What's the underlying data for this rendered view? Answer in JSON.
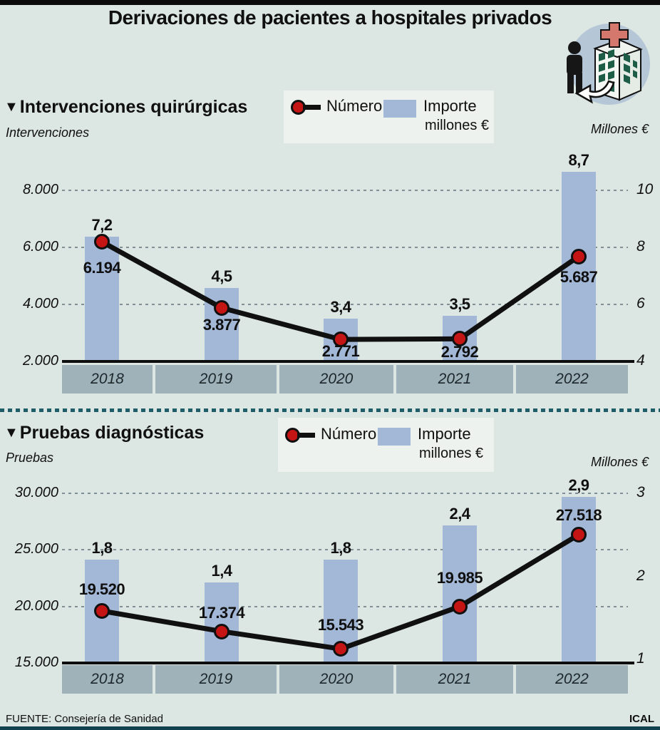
{
  "page": {
    "title": "Derivaciones de pacientes a hospitales privados",
    "source": "FUENTE: Consejería de Sanidad",
    "credit": "ICAL",
    "icon": "hospital-referral-icon"
  },
  "legend": {
    "line_label": "Número",
    "bar_label": "Importe",
    "bar_sublabel": "millones €"
  },
  "colors": {
    "background": "#dce6e2",
    "bar": "#a3b8d6",
    "line": "#101010",
    "dot": "#c41414",
    "band": "#9fb2b9",
    "legend_bg": "#edf2ef",
    "divider": "#1f5d68",
    "top_bar": "#0b0b0b",
    "bottom_bar": "#10414c",
    "icon_circle": "#b5c7d6",
    "icon_cross": "#d4786e",
    "icon_window": "#1d5c46"
  },
  "chart_data": [
    {
      "type": "combo",
      "title": "Intervenciones quirúrgicas",
      "left_axis_label": "Intervenciones",
      "right_axis_label": "Millones €",
      "categories": [
        "2018",
        "2019",
        "2020",
        "2021",
        "2022"
      ],
      "series": [
        {
          "name": "Número",
          "type": "line",
          "axis": "left",
          "values": [
            6194,
            3877,
            2771,
            2792,
            5687
          ],
          "labels": [
            "6.194",
            "3.877",
            "2.771",
            "2.792",
            "5.687"
          ]
        },
        {
          "name": "Importe millones €",
          "type": "bar",
          "axis": "right",
          "values": [
            7.2,
            4.5,
            3.4,
            3.5,
            8.7
          ],
          "labels": [
            "7,2",
            "4,5",
            "3,4",
            "3,5",
            "8,7"
          ]
        }
      ],
      "left_ticks": {
        "values": [
          8000,
          6000,
          4000,
          2000
        ],
        "labels": [
          "8.000",
          "6.000",
          "4.000",
          "2.000"
        ]
      },
      "right_ticks": {
        "values": [
          10,
          8,
          6,
          4
        ],
        "labels": [
          "10",
          "8",
          "6",
          "4"
        ]
      },
      "left_range": [
        2000,
        8000
      ],
      "right_range": [
        4,
        10
      ],
      "grid": "dotted-horizontal",
      "legend_position": "top-center"
    },
    {
      "type": "combo",
      "title": "Pruebas diagnósticas",
      "left_axis_label": "Pruebas",
      "right_axis_label": "Millones €",
      "categories": [
        "2018",
        "2019",
        "2020",
        "2021",
        "2022"
      ],
      "series": [
        {
          "name": "Número",
          "type": "line",
          "axis": "left",
          "values": [
            19520,
            17374,
            15543,
            19985,
            27518
          ],
          "labels": [
            "19.520",
            "17.374",
            "15.543",
            "19.985",
            "27.518"
          ]
        },
        {
          "name": "Importe millones €",
          "type": "bar",
          "axis": "right",
          "values": [
            1.8,
            1.4,
            1.8,
            2.4,
            2.9
          ],
          "labels": [
            "1,8",
            "1,4",
            "1,8",
            "2,4",
            "2,9"
          ]
        }
      ],
      "left_ticks": {
        "values": [
          30000,
          25000,
          20000,
          15000
        ],
        "labels": [
          "30.000",
          "25.000",
          "20.000",
          "15.000"
        ]
      },
      "right_ticks": {
        "values": [
          3,
          2,
          1
        ],
        "labels": [
          "3",
          "2",
          "1"
        ]
      },
      "left_range": [
        15000,
        30000
      ],
      "right_range": [
        1,
        3
      ],
      "grid": "dotted-horizontal",
      "legend_position": "top-center"
    }
  ]
}
